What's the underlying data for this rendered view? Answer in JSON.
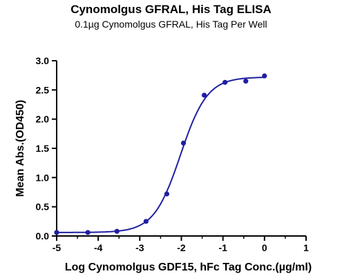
{
  "chart_data": {
    "type": "scatter",
    "title": "Cynomolgus GFRAL, His Tag ELISA",
    "subtitle": "0.1µg Cynomolgus GFRAL, His Tag Per Well",
    "xlabel": "Log Cynomolgus GDF15, hFc Tag Conc.(µg/ml)",
    "ylabel": "Mean Abs.(OD450)",
    "xlim": [
      -5,
      1
    ],
    "ylim": [
      0,
      3.0
    ],
    "x_ticks": [
      "-5",
      "-4",
      "-3",
      "-2",
      "-1",
      "0",
      "1"
    ],
    "y_ticks": [
      "0.0",
      "0.5",
      "1.0",
      "1.5",
      "2.0",
      "2.5",
      "3.0"
    ],
    "series": [
      {
        "points": [
          {
            "x": -5.0,
            "y": 0.06
          },
          {
            "x": -4.25,
            "y": 0.06
          },
          {
            "x": -3.55,
            "y": 0.08
          },
          {
            "x": -2.85,
            "y": 0.25
          },
          {
            "x": -2.35,
            "y": 0.72
          },
          {
            "x": -1.95,
            "y": 1.59
          },
          {
            "x": -1.45,
            "y": 2.41
          },
          {
            "x": -0.95,
            "y": 2.63
          },
          {
            "x": -0.45,
            "y": 2.65
          },
          {
            "x": 0.0,
            "y": 2.74
          }
        ],
        "fit": {
          "bottom": 0.06,
          "top": 2.72,
          "logEC50": -2.02,
          "hill": 1.35
        }
      }
    ],
    "colors": {
      "series": "#1f1fa0",
      "axis": "#000000"
    },
    "grid": false
  }
}
